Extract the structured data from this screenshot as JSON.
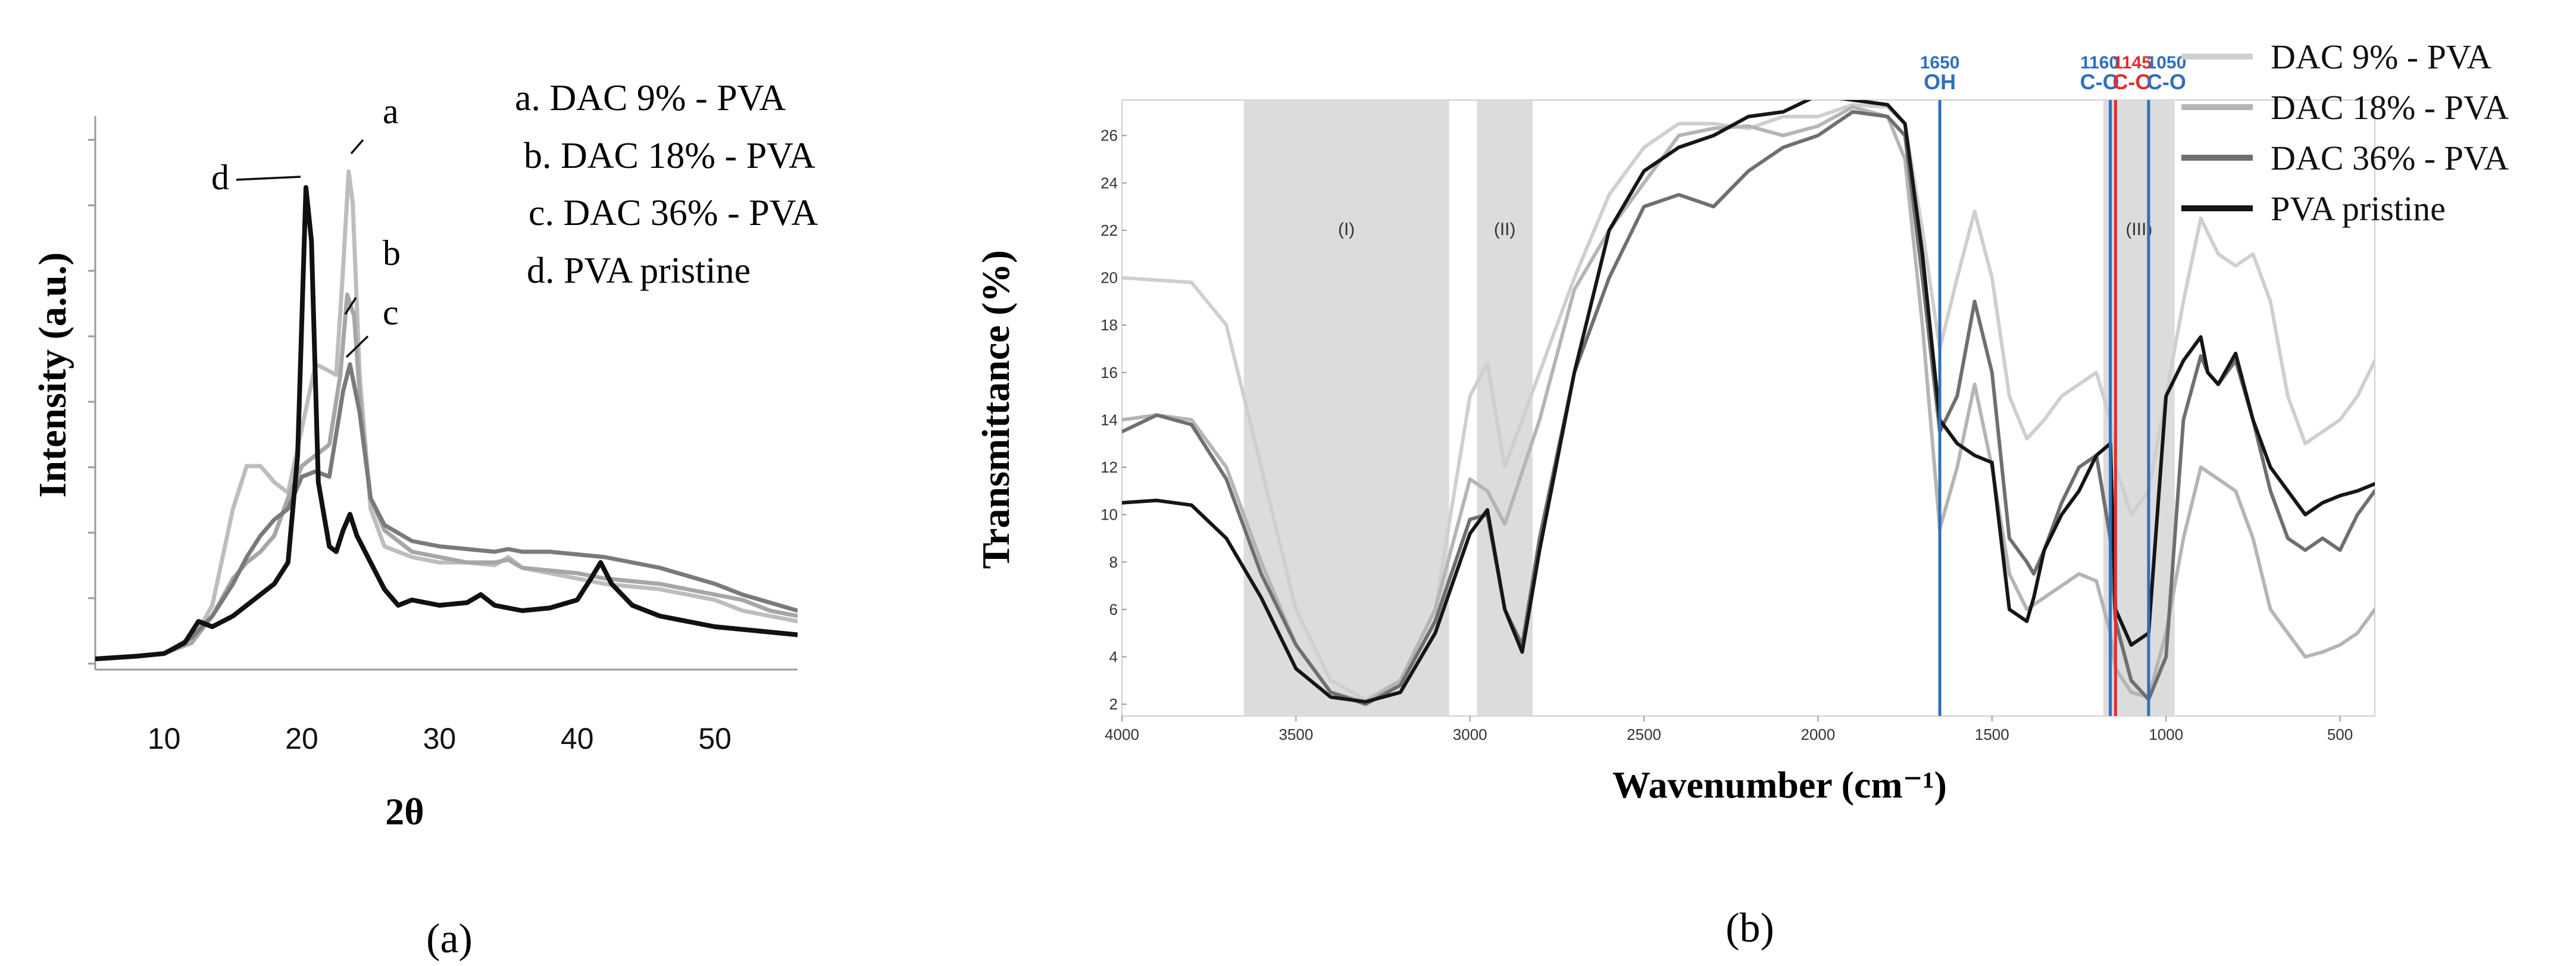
{
  "chart_data": [
    {
      "panel": "(a)",
      "type": "line",
      "xlabel": "2θ",
      "ylabel": "Intensity (a.u.)",
      "xlim": [
        5,
        56
      ],
      "ylim": [
        0,
        100
      ],
      "xticks": [
        10,
        20,
        30,
        40,
        50
      ],
      "legend": [
        "a. DAC 9% - PVA",
        "b. DAC 18% - PVA",
        "c. DAC 36% - PVA",
        "d. PVA pristine"
      ],
      "curve_labels": [
        "a",
        "b",
        "c",
        "d"
      ],
      "series": [
        {
          "name": "DAC 9% - PVA",
          "label": "a",
          "color": "#bdbdbd",
          "x": [
            5,
            8,
            10,
            12,
            13.5,
            15,
            16,
            17,
            18,
            19,
            20,
            21,
            21.8,
            22.5,
            23,
            23.4,
            23.7,
            24.2,
            25,
            26,
            28,
            30,
            32,
            34,
            35,
            36,
            38,
            40,
            42,
            44,
            46,
            48,
            50,
            52,
            54,
            56
          ],
          "y": [
            2,
            2.5,
            3,
            5,
            12,
            30,
            38,
            38,
            35,
            33,
            45,
            57,
            56,
            55,
            75,
            93,
            87,
            55,
            30,
            23,
            21,
            20,
            20,
            19.5,
            21,
            19,
            18,
            17,
            16,
            15.5,
            15,
            14,
            13,
            11,
            10,
            9
          ]
        },
        {
          "name": "DAC 18% - PVA",
          "label": "b",
          "color": "#a6a6a6",
          "x": [
            5,
            8,
            10,
            12,
            13.5,
            15,
            16,
            17,
            18,
            19,
            20,
            21,
            22,
            22.8,
            23.3,
            23.8,
            24.3,
            25,
            26,
            28,
            30,
            32,
            34,
            35,
            36,
            38,
            40,
            42,
            44,
            46,
            48,
            50,
            52,
            54,
            56
          ],
          "y": [
            2,
            2.5,
            3,
            5,
            10,
            17,
            20,
            22,
            25,
            32,
            38,
            40,
            42,
            55,
            70,
            66,
            48,
            32,
            26,
            22,
            21,
            20,
            20,
            20.5,
            19,
            18.5,
            18,
            17,
            16.5,
            16,
            15,
            14,
            13,
            11,
            10
          ]
        },
        {
          "name": "DAC 36% - PVA",
          "label": "c",
          "color": "#7a7a7a",
          "x": [
            5,
            8,
            10,
            12,
            13.5,
            15,
            16,
            17,
            18,
            19,
            20,
            21,
            22,
            23,
            23.5,
            24.2,
            25,
            26,
            28,
            30,
            32,
            34,
            35,
            36,
            38,
            40,
            42,
            44,
            46,
            48,
            50,
            52,
            54,
            56
          ],
          "y": [
            2,
            2.5,
            3,
            6,
            10,
            16,
            21,
            25,
            28,
            30,
            36,
            37,
            36,
            52,
            57,
            48,
            32,
            27,
            24,
            23,
            22.5,
            22,
            22.5,
            22,
            22,
            21.5,
            21,
            20,
            19,
            17.5,
            16,
            14,
            12.5,
            11
          ]
        },
        {
          "name": "PVA pristine",
          "label": "d",
          "color": "#111111",
          "x": [
            5,
            8,
            10,
            11.5,
            12.5,
            13.5,
            15,
            16,
            17,
            18,
            19,
            19.7,
            20.3,
            20.7,
            21.2,
            22,
            22.5,
            23,
            23.5,
            24,
            25,
            26,
            27,
            28,
            30,
            32,
            33,
            34,
            35,
            36,
            38,
            40,
            41,
            41.7,
            42.5,
            44,
            46,
            48,
            50,
            52,
            54,
            56
          ],
          "y": [
            2,
            2.5,
            3,
            5,
            9,
            8,
            10,
            12,
            14,
            16,
            20,
            40,
            90,
            80,
            35,
            23,
            22,
            26,
            29,
            25,
            20,
            15,
            12,
            13,
            12,
            12.5,
            14,
            12,
            11.5,
            11,
            11.5,
            13,
            17,
            20,
            16,
            12,
            10,
            9,
            8,
            7.5,
            7,
            6.5
          ]
        }
      ]
    },
    {
      "panel": "(b)",
      "type": "line",
      "xlabel": "Wavenumber (cm⁻¹)",
      "ylabel": "Transmittance (%)",
      "xlim": [
        4000,
        400
      ],
      "ylim": [
        1.5,
        27.5
      ],
      "xticks": [
        4000,
        3500,
        3000,
        2500,
        2000,
        1500,
        1000,
        500
      ],
      "yticks": [
        2,
        4,
        6,
        8,
        10,
        12,
        14,
        16,
        18,
        20,
        22,
        24,
        26
      ],
      "legend": [
        "DAC 9% - PVA",
        "DAC 18% - PVA",
        "DAC 36% - PVA",
        "PVA pristine"
      ],
      "regions": [
        {
          "label": "(I)",
          "from": 3650,
          "to": 3060
        },
        {
          "label": "(II)",
          "from": 2980,
          "to": 2820
        },
        {
          "label": "(III)",
          "from": 1180,
          "to": 975
        }
      ],
      "markers": [
        {
          "wavenumber": 1650,
          "value_label": "1650",
          "group": "OH",
          "color": "#2f6fbf"
        },
        {
          "wavenumber": 1160,
          "value_label": "1160",
          "group": "C-O",
          "color": "#2f6fbf"
        },
        {
          "wavenumber": 1145,
          "value_label": "1145",
          "group": "C-O",
          "color": "#e03030"
        },
        {
          "wavenumber": 1050,
          "value_label": "1050",
          "group": "C-O",
          "color": "#2f6fbf"
        }
      ],
      "series": [
        {
          "name": "DAC 9% - PVA",
          "color": "#cfcfcf",
          "x": [
            4000,
            3800,
            3700,
            3600,
            3500,
            3400,
            3300,
            3200,
            3100,
            3000,
            2950,
            2900,
            2800,
            2700,
            2600,
            2500,
            2400,
            2300,
            2200,
            2100,
            2000,
            1900,
            1800,
            1750,
            1700,
            1650,
            1600,
            1550,
            1500,
            1450,
            1400,
            1350,
            1300,
            1250,
            1200,
            1160,
            1145,
            1100,
            1050,
            1000,
            950,
            900,
            850,
            800,
            750,
            700,
            650,
            600,
            550,
            500,
            450,
            400
          ],
          "y": [
            20,
            19.8,
            18,
            12,
            6,
            3,
            2.2,
            3,
            6,
            15,
            16.4,
            12,
            16,
            20,
            23.5,
            25.5,
            26.5,
            26.5,
            26.3,
            26.8,
            26.8,
            27.3,
            27.2,
            26.5,
            22,
            17,
            20,
            22.8,
            20,
            15,
            13.2,
            14,
            15,
            15.5,
            16,
            14,
            12,
            10,
            11,
            15,
            19,
            22.5,
            21,
            20.5,
            21,
            19,
            15,
            13,
            13.5,
            14,
            15,
            16.5
          ]
        },
        {
          "name": "DAC 18% - PVA",
          "color": "#b5b5b5",
          "x": [
            4000,
            3900,
            3800,
            3700,
            3600,
            3500,
            3400,
            3300,
            3200,
            3100,
            3000,
            2950,
            2900,
            2800,
            2700,
            2600,
            2500,
            2400,
            2300,
            2200,
            2100,
            2000,
            1900,
            1800,
            1750,
            1700,
            1650,
            1600,
            1550,
            1500,
            1450,
            1400,
            1350,
            1300,
            1250,
            1200,
            1160,
            1145,
            1100,
            1050,
            1000,
            950,
            900,
            850,
            800,
            750,
            700,
            650,
            600,
            550,
            500,
            450,
            400
          ],
          "y": [
            14,
            14.2,
            14,
            12,
            8,
            4.5,
            2.5,
            2.1,
            3,
            6,
            11.5,
            11,
            9.6,
            14,
            19.5,
            22,
            24,
            26,
            26.3,
            26.4,
            26,
            26.4,
            27.2,
            26.8,
            25,
            18,
            9.4,
            12,
            15.5,
            12,
            7.5,
            6,
            6.5,
            7,
            7.5,
            7.2,
            5,
            3.5,
            2.5,
            2.3,
            5,
            9,
            12,
            11.5,
            11,
            9,
            6,
            5,
            4,
            4.2,
            4.5,
            5,
            6
          ]
        },
        {
          "name": "DAC 36% - PVA",
          "color": "#6f6f6f",
          "x": [
            4000,
            3900,
            3800,
            3700,
            3600,
            3500,
            3400,
            3300,
            3200,
            3100,
            3000,
            2950,
            2900,
            2850,
            2800,
            2700,
            2600,
            2500,
            2400,
            2300,
            2200,
            2100,
            2000,
            1900,
            1800,
            1750,
            1700,
            1650,
            1600,
            1550,
            1500,
            1450,
            1400,
            1380,
            1350,
            1300,
            1250,
            1200,
            1160,
            1145,
            1100,
            1050,
            1000,
            950,
            900,
            880,
            850,
            800,
            750,
            700,
            650,
            600,
            550,
            500,
            450,
            400
          ],
          "y": [
            13.5,
            14.2,
            13.8,
            11.5,
            7.5,
            4.5,
            2.5,
            2,
            2.8,
            5.5,
            9.8,
            10,
            6,
            4.5,
            9,
            16,
            20,
            23,
            23.5,
            23,
            24.5,
            25.5,
            26,
            27,
            26.8,
            26,
            20,
            13.5,
            15,
            19,
            16,
            9,
            8,
            7.5,
            8.5,
            10.5,
            12,
            12.5,
            9,
            5.5,
            3,
            2.2,
            4,
            14,
            16.7,
            16,
            15.5,
            16.5,
            14,
            11,
            9,
            8.5,
            9,
            8.5,
            10,
            11
          ]
        },
        {
          "name": "PVA pristine",
          "color": "#161616",
          "x": [
            4000,
            3900,
            3800,
            3700,
            3600,
            3500,
            3400,
            3300,
            3200,
            3100,
            3000,
            2950,
            2900,
            2850,
            2800,
            2700,
            2600,
            2500,
            2400,
            2300,
            2200,
            2100,
            2000,
            1900,
            1800,
            1750,
            1700,
            1650,
            1600,
            1550,
            1500,
            1450,
            1400,
            1380,
            1350,
            1300,
            1250,
            1200,
            1160,
            1145,
            1100,
            1050,
            1000,
            950,
            900,
            880,
            850,
            800,
            750,
            700,
            650,
            600,
            550,
            500,
            450,
            400
          ],
          "y": [
            10.5,
            10.6,
            10.4,
            9,
            6.5,
            3.5,
            2.3,
            2.1,
            2.5,
            5,
            9.2,
            10.2,
            6,
            4.2,
            8.5,
            16,
            22,
            24.5,
            25.5,
            26,
            26.8,
            27,
            27.7,
            27.5,
            27.3,
            26.5,
            21,
            14,
            13,
            12.5,
            12.2,
            6,
            5.5,
            6.5,
            8.5,
            10,
            11,
            12.5,
            13,
            6,
            4.5,
            5,
            15,
            16.5,
            17.5,
            16,
            15.5,
            16.8,
            14,
            12,
            11,
            10,
            10.5,
            10.8,
            11,
            11.3
          ]
        }
      ]
    }
  ]
}
